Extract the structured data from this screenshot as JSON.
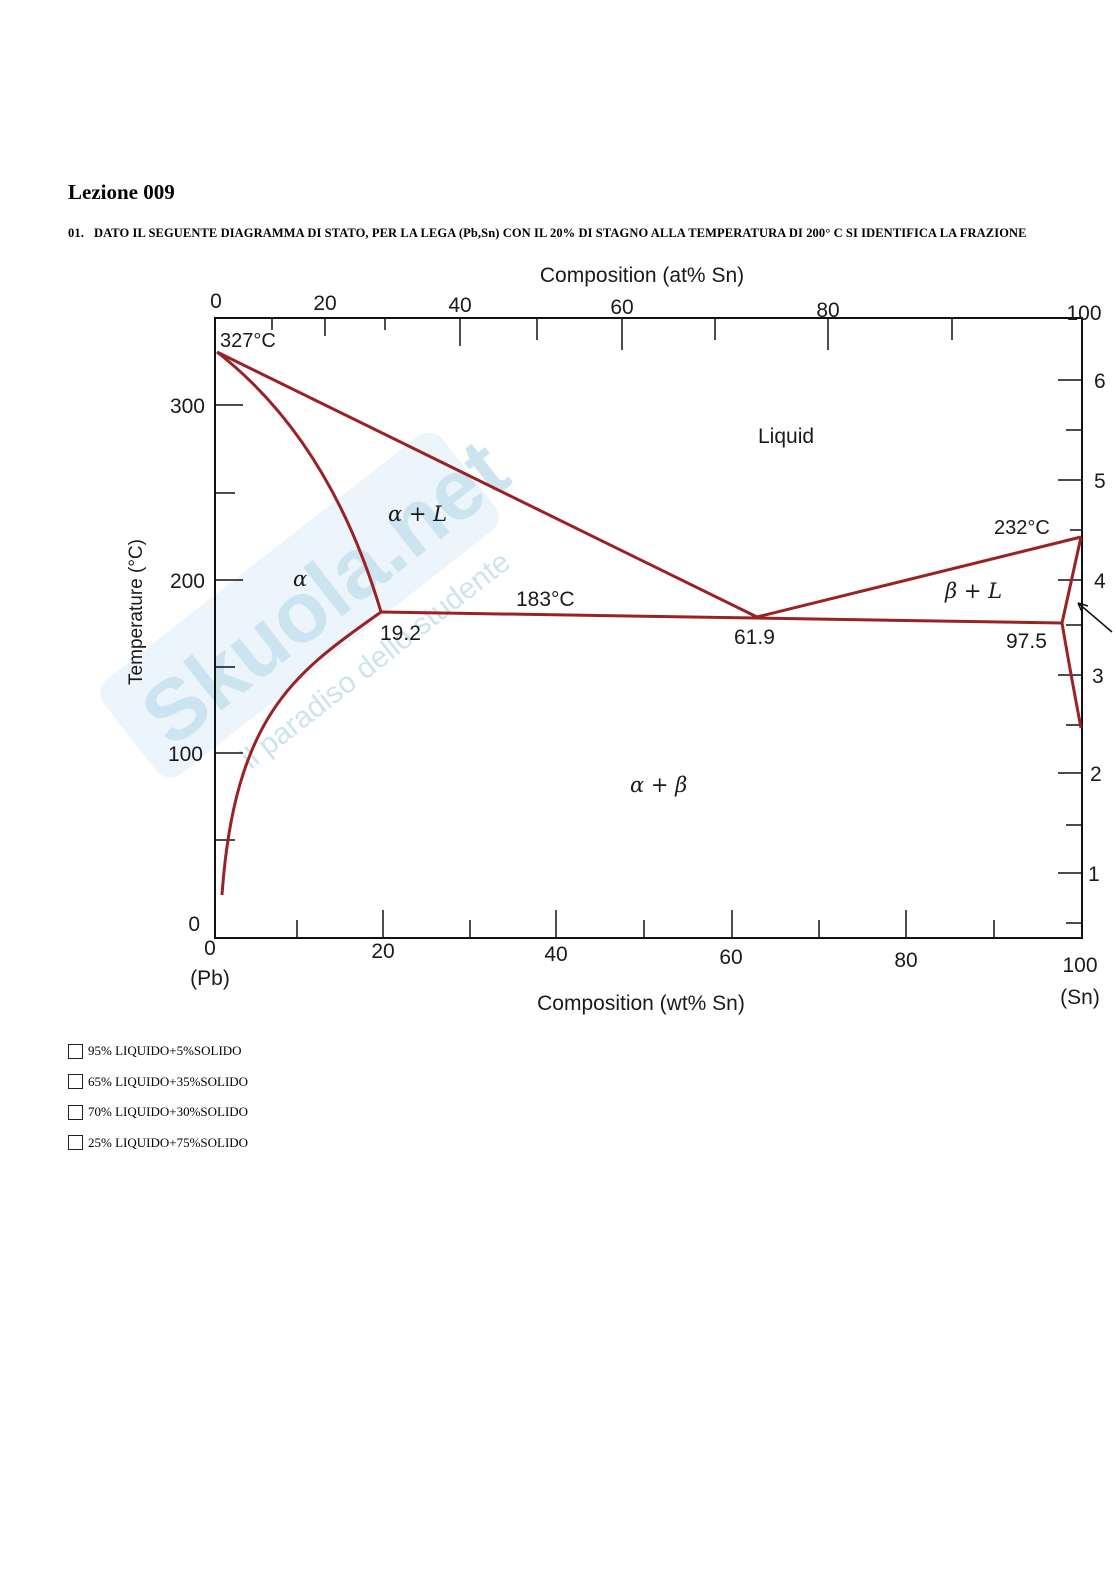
{
  "lesson_title": "Lezione 009",
  "question": {
    "number": "01.",
    "text": "DATO IL SEGUENTE DIAGRAMMA DI STATO, PER LA LEGA (Pb,Sn) CON IL 20% DI STAGNO ALLA TEMPERATURA DI 200° C SI IDENTIFICA LA FRAZIONE"
  },
  "diagram": {
    "top_axis_title": "Composition (at% Sn)",
    "top_ticks": [
      "0",
      "20",
      "40",
      "60",
      "80",
      "100"
    ],
    "bottom_axis_title": "Composition (wt% Sn)",
    "bottom_ticks": [
      "0",
      "20",
      "40",
      "60",
      "80",
      "100"
    ],
    "left_axis_title": "Temperature (°C)",
    "left_ticks": [
      "300",
      "200",
      "100",
      "0"
    ],
    "right_ticks_visible": [
      "6",
      "5",
      "4",
      "3",
      "2",
      "1"
    ],
    "end_labels": {
      "left": "(Pb)",
      "right": "(Sn)"
    },
    "annotations": {
      "pb_melting": "327°C",
      "sn_melting": "232°C",
      "eutectic": "183°C",
      "alpha_max_solubility": "19.2",
      "eutectic_composition": "61.9",
      "beta_max_solubility": "97.5"
    },
    "regions": {
      "liquid": "Liquid",
      "alpha_plus_liquid": "α + L",
      "alpha": "α",
      "beta_plus_liquid": "β + L",
      "alpha_plus_beta": "α + β"
    },
    "line_color": "#9b2222"
  },
  "watermark": {
    "logo": "Skuola.net",
    "tagline": "il paradiso dello studente"
  },
  "answers": [
    {
      "label": "95% LIQUIDO+5%SOLIDO"
    },
    {
      "label": "65% LIQUIDO+35%SOLIDO"
    },
    {
      "label": "70% LIQUIDO+30%SOLIDO"
    },
    {
      "label": "25% LIQUIDO+75%SOLIDO"
    }
  ]
}
